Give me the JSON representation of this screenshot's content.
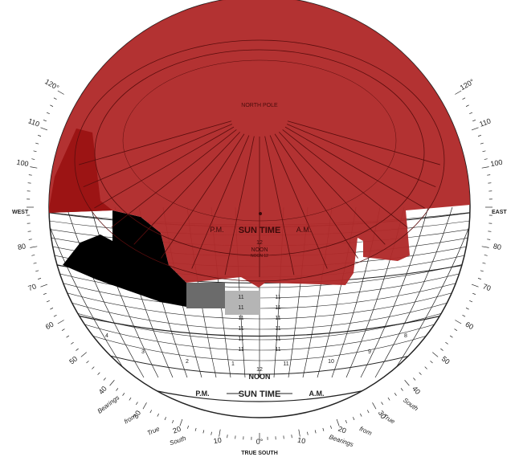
{
  "scale_labels": {
    "west": "WEST",
    "east": "EAST",
    "true_south": "TRUE SOUTH",
    "south_bearing": "0°",
    "west_arc": [
      "120°",
      "110",
      "100",
      "90",
      "80",
      "70",
      "60",
      "50",
      "40",
      "30"
    ],
    "east_arc": [
      "120°",
      "110",
      "100",
      "90",
      "80",
      "70",
      "60",
      "50",
      "40",
      "30"
    ],
    "bearings_left": [
      "Bearings",
      "from",
      "True",
      "South"
    ],
    "bearings_right": [
      "Bearings",
      "from",
      "True",
      "South"
    ],
    "bottom_left_nums": [
      "20",
      "10"
    ],
    "bottom_right_nums": [
      "10",
      "20"
    ]
  },
  "upper_dial": {
    "north_pole": "NORTH POLE",
    "pm": "P.M.",
    "am": "A.M.",
    "sun_time": "SUN TIME",
    "noon_top": "12",
    "noon": "NOON",
    "noon_sub": "NOON 12"
  },
  "lower_dial": {
    "pm": "P.M.",
    "am": "A.M.",
    "sun_time": "SUN TIME",
    "noon_top": "12",
    "noon": "NOON",
    "hour_left": [
      "1",
      "2",
      "3",
      "4"
    ],
    "hour_right": [
      "11",
      "10",
      "9",
      "8"
    ],
    "noon_column": [
      "11",
      "11",
      "11",
      "11",
      "11",
      "11"
    ]
  },
  "colors": {
    "shade": "#b02a2a",
    "shade_dark": "#9c1414",
    "obstruction": "#000000",
    "gray_dark": "#6b6b6b",
    "gray_light": "#b5b5b5",
    "grid": "#222222"
  }
}
